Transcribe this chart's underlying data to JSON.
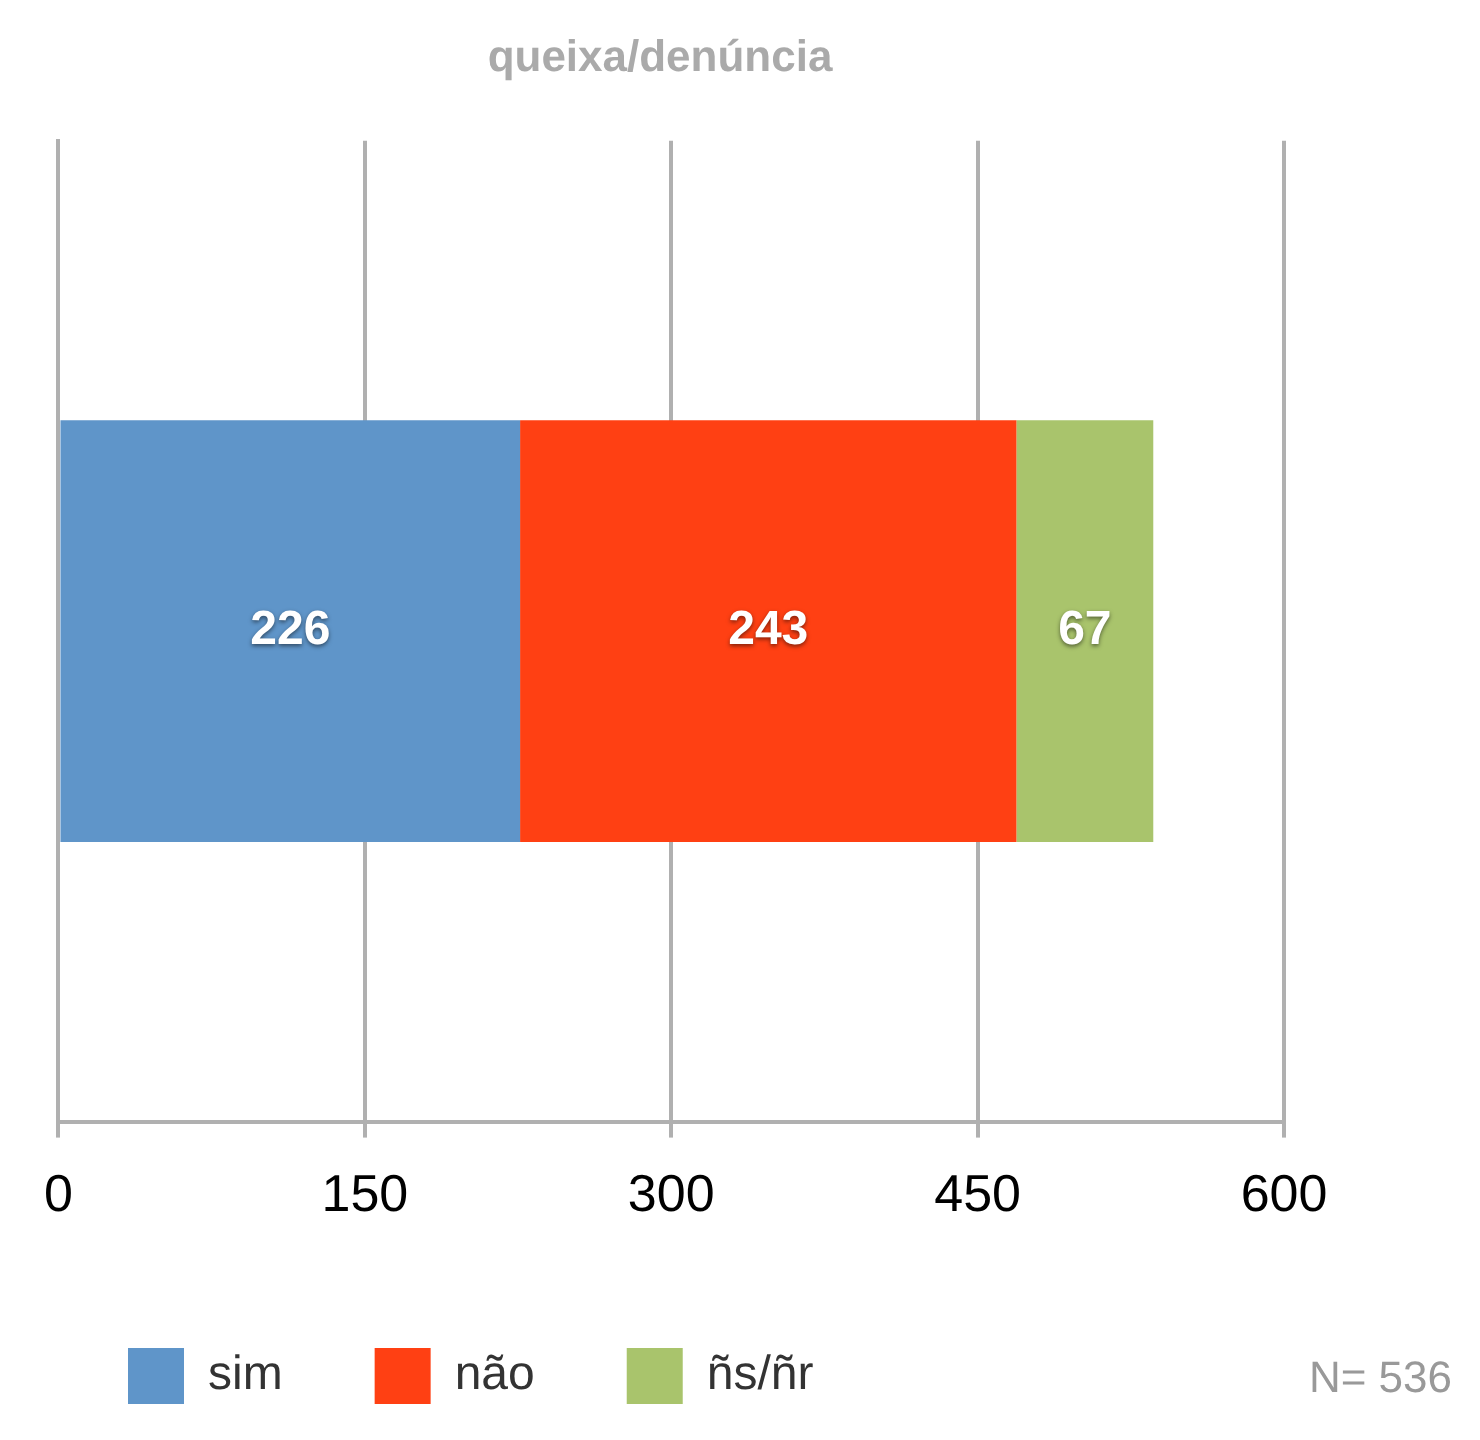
{
  "chart_data": {
    "type": "bar",
    "orientation": "horizontal",
    "stacked": true,
    "title": "queixa/denúncia",
    "categories": [
      null
    ],
    "series": [
      {
        "name": "sim",
        "color": "#5f95c9",
        "values": [
          226
        ]
      },
      {
        "name": "não",
        "color": "#ff4013",
        "values": [
          243
        ]
      },
      {
        "name": "ñs/ñr",
        "color": "#a9c46c",
        "values": [
          67
        ]
      }
    ],
    "xlim": [
      0,
      600
    ],
    "xticks": [
      0,
      150,
      300,
      450,
      600
    ],
    "grid": "x",
    "tick_labels": "x",
    "legend": "bottom",
    "data_labels": true,
    "annotations": [
      "N= 536"
    ]
  }
}
